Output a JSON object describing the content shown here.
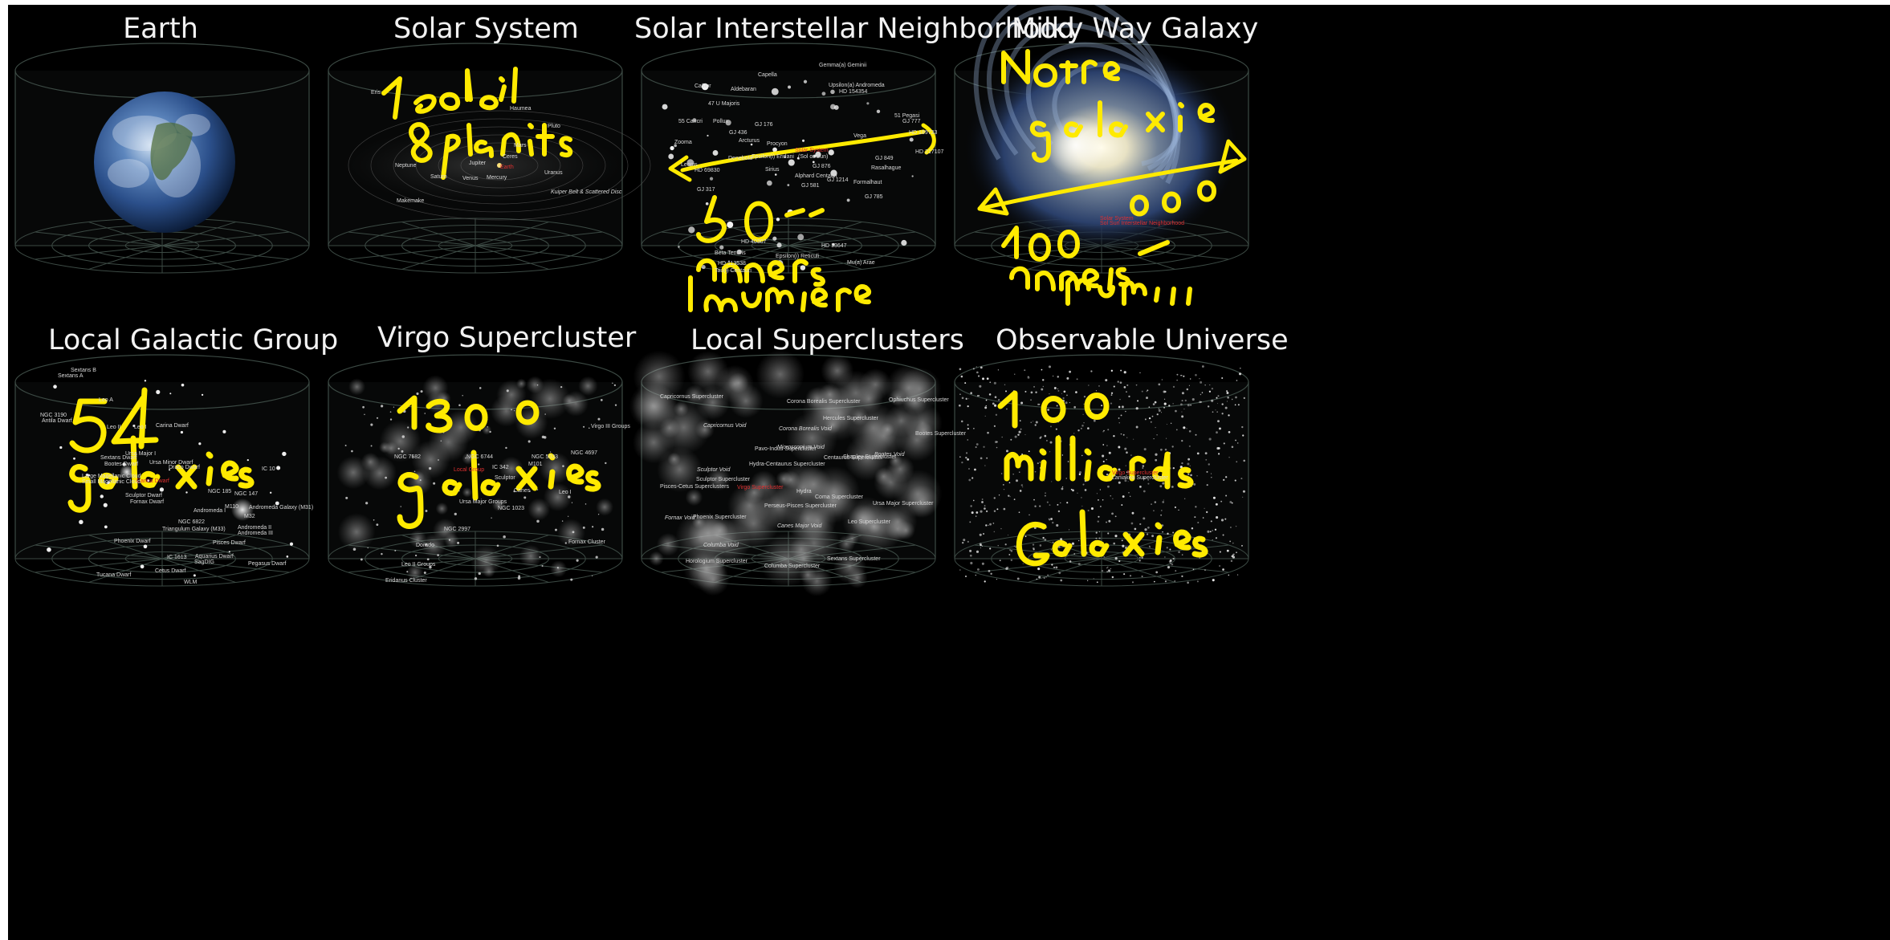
{
  "panels": [
    {
      "title": "Earth"
    },
    {
      "title": "Solar System"
    },
    {
      "title": "Solar Interstellar Neighborhood"
    },
    {
      "title": "Milky Way Galaxy"
    },
    {
      "title": "Local Galactic Group"
    },
    {
      "title": "Virgo Supercluster"
    },
    {
      "title": "Local Superclusters"
    },
    {
      "title": "Observable Universe"
    }
  ],
  "labels": {
    "solar_system": [
      "Eris",
      "Haumea",
      "Pluto",
      "Ceres",
      "Jupiter",
      "Mars",
      "Earth",
      "Venus",
      "Mercury",
      "Saturn",
      "Uranus",
      "Neptune",
      "Makemake",
      "Kuiper Belt & Scattered Disc"
    ],
    "neighborhood": [
      "Gemma(a) Geminii",
      "Capella",
      "Aldebaran",
      "Castor",
      "Upsilon(a) Andromeda",
      "HD 154354",
      "47 U Majoris",
      "55 Cancri",
      "Pollux",
      "GJ 176",
      "GJ 436",
      "51 Pegasi",
      "GJ 777",
      "HD 189733",
      "Arcturus",
      "Procyon",
      "Zooma",
      "Solar System",
      "(Sol or Sun)",
      "Vega",
      "Denebola",
      "Epsilon(i) Eridani",
      "GJ 849",
      "HD 217107",
      "HD 69830",
      "Sirius",
      "GJ 876",
      "Rasalhague",
      "Leonis",
      "Alphard Centauri",
      "GJ 1214",
      "Formalhaut",
      "GJ 581",
      "GJ 317",
      "GJ 785",
      "HD 40307",
      "HD 13647",
      "Beta Tenuris",
      "HD 113538",
      "Epsilon(i) Reticuli",
      "Mu(a) Arae",
      "Tau(i) Centauri"
    ],
    "local_group": [
      "Sextans B",
      "Sextans A",
      "Leo A",
      "NGC 3190",
      "Antila Dwarf",
      "Leo II",
      "Leo I",
      "Carina Dwarf",
      "Sextans Dwarf",
      "Ursa Major I",
      "Ursa Minor Dwarf",
      "Bootes Dwarf",
      "Draco Dwarf",
      "Large Magellanic Cloud",
      "Small Magellanic Cloud",
      "Carina Dwarf",
      "IC 10",
      "Sculptor Dwarf",
      "NGC 185",
      "NGC 147",
      "Fornax Dwarf",
      "M110",
      "Andromeda Galaxy (M31)",
      "Andromeda I",
      "M32",
      "NGC 6822",
      "Andromeda II",
      "Triangulum Galaxy (M33)",
      "Andromeda III",
      "Phoenix Dwarf",
      "Pisces Dwarf",
      "IC 1613",
      "Aquarius Dwarf",
      "SagDIG",
      "Pegasus Dwarf",
      "Tucana Dwarf",
      "Cetus Dwarf",
      "WLM"
    ],
    "virgo": [
      "Virgo III Groups",
      "NGC 7582",
      "NGC 6744",
      "NGC 5033",
      "NGC 4697",
      "Local Group",
      "IC 342",
      "Sculptor",
      "M101",
      "Canes",
      "Leo I",
      "Ursa Major Groups",
      "NGC 1023",
      "NGC 2997",
      "Dorado",
      "Fornax Cluster",
      "Leo II Groups",
      "Eridanus Cluster",
      "Crater Cloud"
    ],
    "superclusters": [
      "Capricornus Supercluster",
      "Ophiuchus Supercluster",
      "Corona Borealis Supercluster",
      "Hercules Supercluster",
      "Capricornus Void",
      "Corona Borealis Void",
      "Bootes Supercluster",
      "Pavo-Indus Supercluster",
      "Microscopium Void",
      "Shapley Supercluster",
      "Bootes Void",
      "Centaurus Supercluster",
      "Hydra-Centaurus Supercluster",
      "Sculptor Void",
      "Pisces-Cetus Superclusters",
      "Sculptor Supercluster",
      "Virgo Supercluster",
      "Hydra",
      "Coma Supercluster",
      "Ursa Major Supercluster",
      "Perseus-Pisces Supercluster",
      "Fornax Void",
      "Phoenix Supercluster",
      "Canes Major Void",
      "Leo Supercluster",
      "Columba Void",
      "Horologium Supercluster",
      "Columba Supercluster",
      "Sextans Supercluster"
    ],
    "milky_way": [
      "Solar System",
      "Sol Sun Interstellar Neighborhood"
    ],
    "universe": [
      "Virgo Supercluster",
      "Laniakea Supercluster"
    ]
  },
  "annotations": {
    "solar_system": [
      "1 soleil",
      "8 planètes"
    ],
    "neighborhood": [
      "50 années",
      "lumière"
    ],
    "milky_way": [
      "Notre",
      "galaxie",
      "100 000",
      "années",
      "lumière"
    ],
    "local_group": [
      "54",
      "galaxies"
    ],
    "virgo": [
      "1300",
      "galaxies"
    ],
    "universe": [
      "100",
      "milliards",
      "Galaxies"
    ]
  },
  "colors": {
    "background": "#000000",
    "ink": "#ffea00",
    "title": "#f2f2f2",
    "highlight": "#e03030"
  }
}
